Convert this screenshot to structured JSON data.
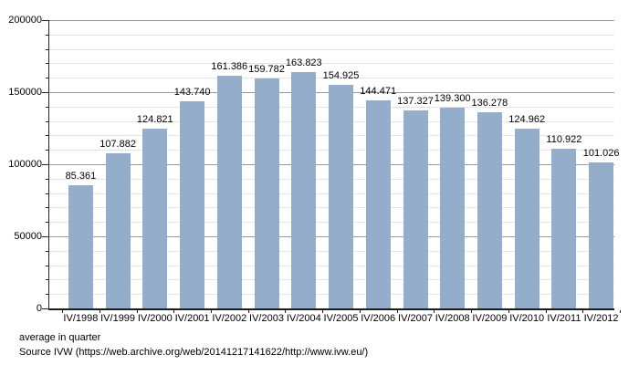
{
  "chart_data": {
    "type": "bar",
    "title": "",
    "categories": [
      "IV/1998",
      "IV/1999",
      "IV/2000",
      "IV/2001",
      "IV/2002",
      "IV/2003",
      "IV/2004",
      "IV/2005",
      "IV/2006",
      "IV/2007",
      "IV/2008",
      "IV/2009",
      "IV/2010",
      "IV/2011",
      "IV/2012"
    ],
    "values": [
      85361,
      107882,
      124821,
      143740,
      161386,
      159782,
      163823,
      154925,
      144471,
      137327,
      139300,
      136278,
      124962,
      110922,
      101026
    ],
    "value_labels": [
      "85.361",
      "107.882",
      "124.821",
      "143.740",
      "161.386",
      "159.782",
      "163.823",
      "154.925",
      "144.471",
      "137.327",
      "139.300",
      "136.278",
      "124.962",
      "110.922",
      "101.026"
    ],
    "xlabel": "",
    "ylabel": "",
    "ylim": [
      0,
      200000
    ],
    "y_major_ticks": [
      0,
      50000,
      100000,
      150000,
      200000
    ],
    "y_major_tick_labels": [
      "0",
      "50000",
      "100000",
      "150000",
      "200000"
    ],
    "y_minor_interval": 10000,
    "grid": "major and minor horizontal gridlines",
    "legend_position": "none",
    "bar_color": "#93adcb",
    "major_grid_color": "#9b9b9b",
    "minor_grid_color": "#e4e4e4",
    "axis_color": "#1c1c1c",
    "text_color": "#000000"
  },
  "footer": {
    "caption": "average in quarter",
    "source": "Source IVW (https://web.archive.org/web/20141217141622/http://www.ivw.eu/)"
  }
}
